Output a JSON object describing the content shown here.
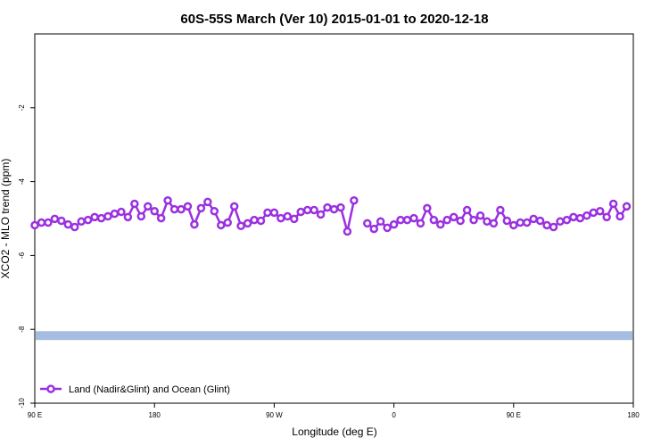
{
  "chart_data": {
    "type": "line",
    "title": "60S-55S March (Ver 10)   2015-01-01 to 2020-12-18",
    "xlabel": "Longitude (deg E)",
    "ylabel": "XCO2 - MLO trend (ppm)",
    "xlim": [
      90,
      540
    ],
    "xticks": [
      {
        "value": 90,
        "label": "90 E"
      },
      180,
      {
        "value": 270,
        "label": "90 W"
      },
      {
        "value": 360,
        "label": "0"
      },
      {
        "value": 450,
        "label": "90 E"
      },
      {
        "value": 540,
        "label": "180"
      }
    ],
    "ylim": [
      -10,
      0
    ],
    "yticks": [
      -10,
      -8,
      -6,
      -4,
      -2
    ],
    "legend": "lower left",
    "band": {
      "range": [
        -8.29,
        -8.05
      ],
      "color": "#a5bde0"
    },
    "x": [
      90,
      95,
      100,
      105,
      110,
      115,
      120,
      125,
      130,
      135,
      140,
      145,
      150,
      155,
      160,
      165,
      170,
      175,
      180,
      185,
      190,
      195,
      200,
      205,
      210,
      215,
      220,
      225,
      230,
      235,
      240,
      245,
      250,
      255,
      260,
      265,
      270,
      275,
      280,
      285,
      290,
      295,
      300,
      305,
      310,
      315,
      320,
      325,
      330,
      335,
      340,
      345,
      350,
      355,
      360,
      365,
      370,
      375,
      380,
      385,
      390,
      395,
      400,
      405,
      410,
      415,
      420,
      425,
      430,
      435,
      440,
      445,
      450,
      455,
      460,
      465,
      470,
      475,
      480,
      485,
      490,
      495,
      500,
      505,
      510,
      515,
      520,
      525,
      530,
      535
    ],
    "series": [
      {
        "name": "Land (Nadir&Glint) and Ocean (Glint)",
        "color": "#9b30e0",
        "values": [
          -5.18,
          -5.11,
          -5.11,
          -5.01,
          -5.06,
          -5.16,
          -5.23,
          -5.08,
          -5.04,
          -4.96,
          -4.99,
          -4.94,
          -4.87,
          -4.82,
          -4.96,
          -4.6,
          -4.94,
          -4.67,
          -4.8,
          -4.99,
          -4.51,
          -4.75,
          -4.75,
          -4.67,
          -5.16,
          -4.72,
          -4.55,
          -4.8,
          -5.18,
          -5.11,
          -4.67,
          -5.2,
          -5.13,
          -5.04,
          -5.06,
          -4.84,
          -4.84,
          -4.99,
          -4.94,
          -5.01,
          -4.82,
          -4.77,
          -4.77,
          -4.89,
          -4.7,
          -4.75,
          -4.7,
          -5.35,
          -4.51,
          null,
          -5.13,
          -5.28,
          -5.08,
          -5.25,
          -5.16,
          -5.04,
          -5.04,
          -4.99,
          -5.13,
          -4.72,
          -5.04,
          -5.16,
          -5.04,
          -4.96,
          -5.06,
          -4.77,
          -5.04,
          -4.92,
          -5.08,
          -5.13,
          -4.77,
          -5.06,
          -5.18,
          -5.11,
          -5.11,
          -5.01,
          -5.06,
          -5.18,
          -5.23,
          -5.08,
          -5.04,
          -4.96,
          -4.99,
          -4.92,
          -4.84,
          -4.8,
          -4.96,
          -4.6,
          -4.94,
          -4.67
        ]
      }
    ]
  }
}
